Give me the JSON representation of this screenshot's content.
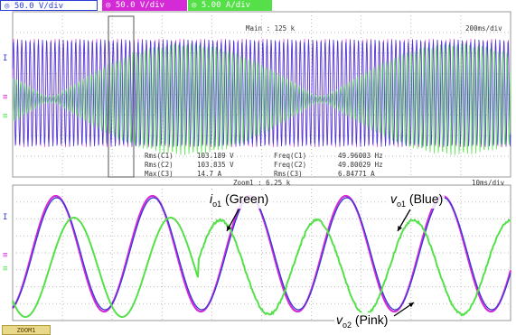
{
  "header": {
    "ch1": "50.0 V/div",
    "ch2": "50.0 V/div",
    "ch3": "5.00 A/div"
  },
  "main": {
    "label": "Main : 125 k",
    "timebase": "200ms/div"
  },
  "measurements": {
    "rms_c1_label": "Rms(C1)",
    "rms_c1_value": "103.189 V",
    "rms_c2_label": "Rms(C2)",
    "rms_c2_value": "103.835 V",
    "max_c3_label": "Max(C3)",
    "max_c3_value": "14.7 A",
    "freq_c1_label": "Freq(C1)",
    "freq_c1_value": "49.96003 Hz",
    "freq_c2_label": "Freq(C2)",
    "freq_c2_value": "49.80029 Hz",
    "rms_c3_label": "Rms(C3)",
    "rms_c3_value": "6.84771 A"
  },
  "zoom": {
    "label": "Zoom1 : 6.25 k",
    "timebase": "10ms/div"
  },
  "annotations": {
    "io1_sym": "i",
    "io1_sub": "o1",
    "io1_text": " (Green)",
    "vo1_sym": "v",
    "vo1_sub": "o1",
    "vo1_text": " (Blue)",
    "vo2_sym": "v",
    "vo2_sub": "o2",
    "vo2_text": " (Pink)"
  },
  "footer_tab": "ZOOM1",
  "colors": {
    "blue": "#2b3bd6",
    "pink": "#d42bd6",
    "green": "#55e04a",
    "grid": "#bbbbbb"
  }
}
